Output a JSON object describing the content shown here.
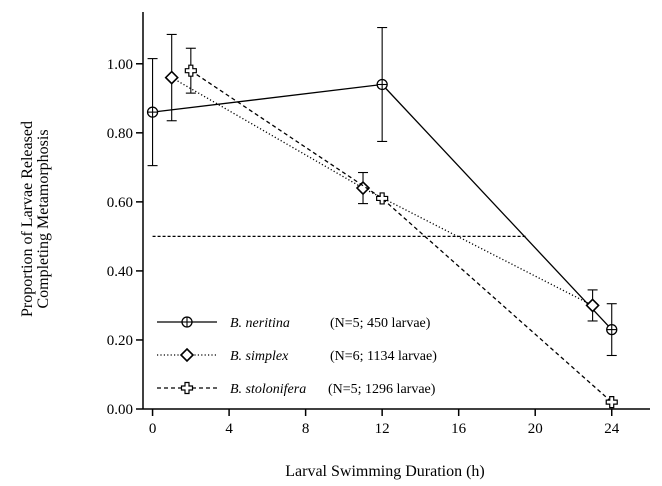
{
  "chart_data": {
    "type": "line",
    "xlabel": "Larval Swimming Duration (h)",
    "ylabel_lines": [
      "Proportion of Larvae Released",
      "Completing Metamorphosis"
    ],
    "xlim": [
      -0.5,
      26
    ],
    "ylim": [
      0,
      1.15
    ],
    "xticks": [
      "0",
      "4",
      "8",
      "12",
      "16",
      "20",
      "24"
    ],
    "yticks": [
      "0.00",
      "0.20",
      "0.40",
      "0.60",
      "0.80",
      "1.00"
    ],
    "reference_line": {
      "y": 0.5,
      "x_range": [
        0,
        19.6
      ],
      "style": "dashed"
    },
    "legend_position": "bottom-left",
    "series": [
      {
        "name": "B. neritina",
        "n_label": "(N=5; 450 larvae)",
        "marker": "circle-plus",
        "line": "solid",
        "x": [
          0,
          12,
          24
        ],
        "y": [
          0.86,
          0.94,
          0.23
        ],
        "err": [
          0.155,
          0.165,
          0.075
        ]
      },
      {
        "name": "B. simplex",
        "n_label": "(N=6; 1134 larvae)",
        "marker": "diamond",
        "line": "dotted",
        "x": [
          1,
          11,
          23
        ],
        "y": [
          0.96,
          0.64,
          0.3
        ],
        "err": [
          0.125,
          0.045,
          0.045
        ]
      },
      {
        "name": "B. stolonifera",
        "n_label": "(N=5; 1296 larvae)",
        "marker": "open-cross",
        "line": "dashed",
        "x": [
          2,
          12,
          24
        ],
        "y": [
          0.98,
          0.61,
          0.02
        ],
        "err": [
          0.065,
          0.0,
          0.0
        ]
      }
    ]
  }
}
